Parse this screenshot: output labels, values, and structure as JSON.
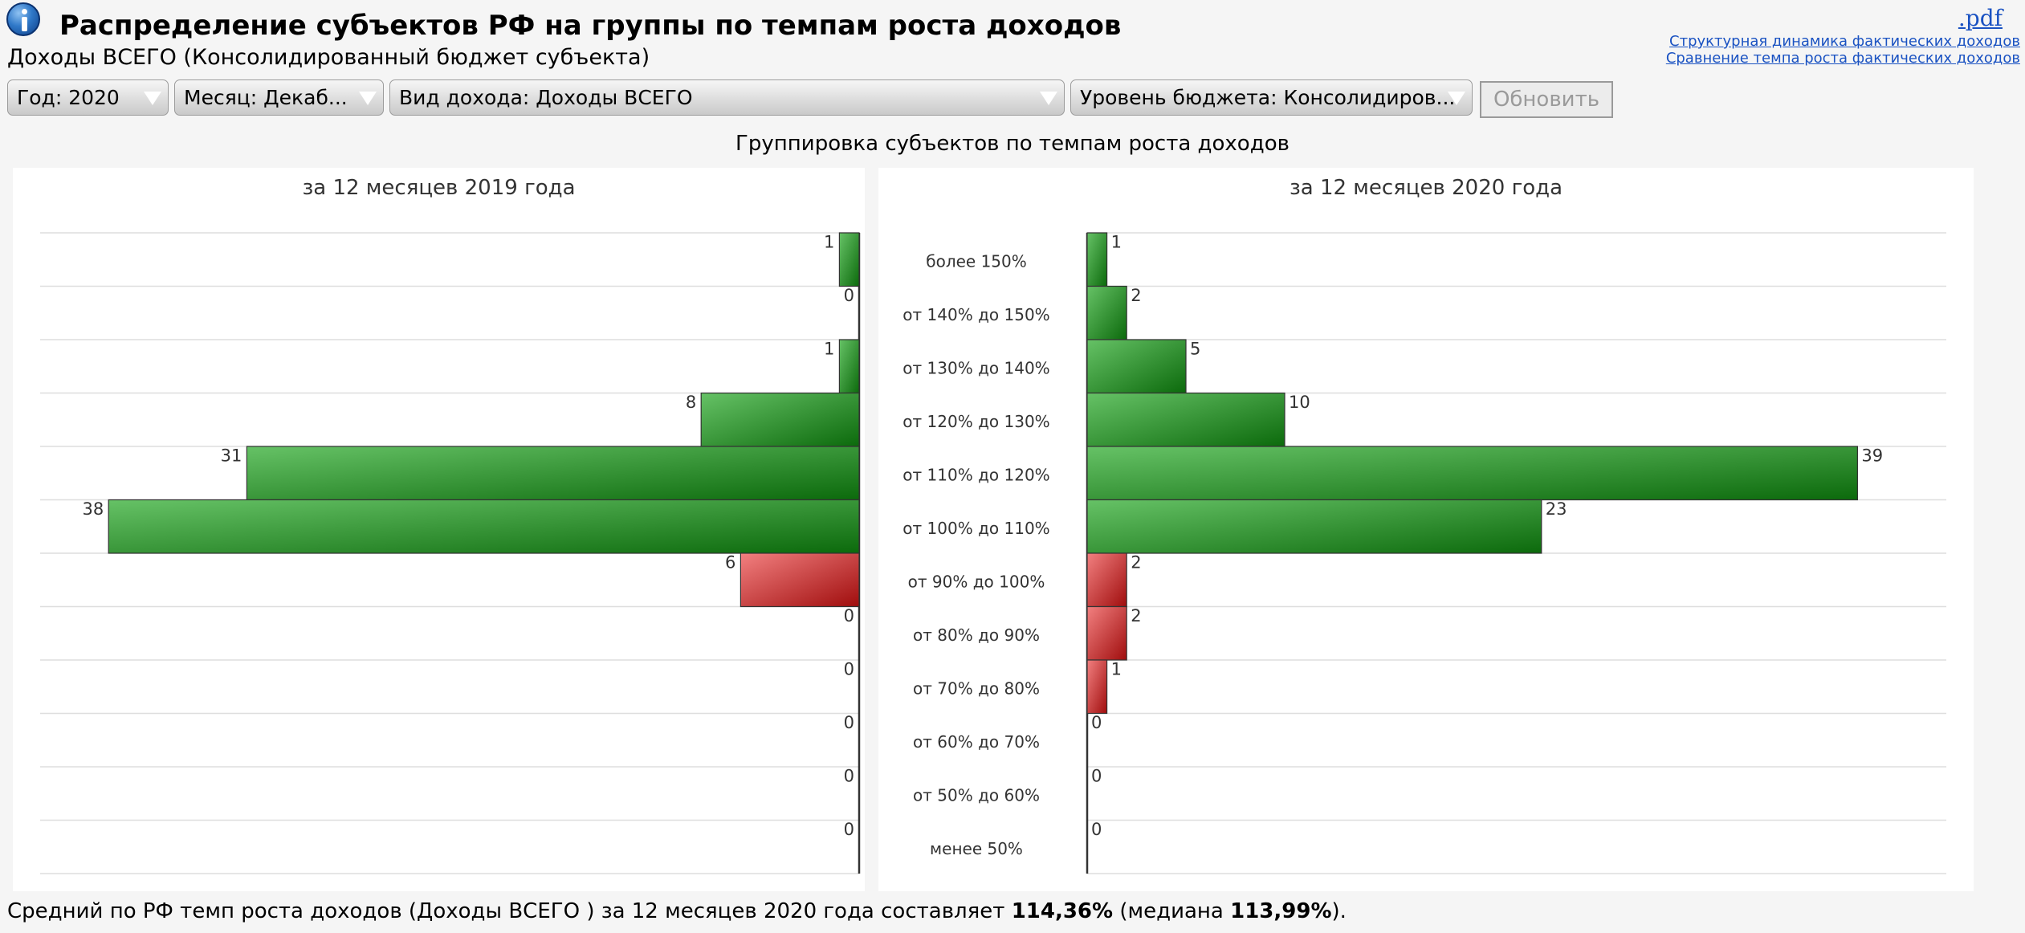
{
  "header": {
    "title": "Распределение субъектов РФ на группы по темпам роста доходов",
    "subtitle": "Доходы ВСЕГО (Консолидированный бюджет субъекта)",
    "pdf_link": ".pdf",
    "links": [
      "Структурная динамика фактических доходов",
      "Сравнение темпа роста фактических доходов"
    ]
  },
  "filters": {
    "year": "Год: 2020",
    "month": "Месяц: Декаб...",
    "income_type": "Вид дохода: Доходы ВСЕГО",
    "budget_level": "Уровень бюджета: Консолидиров...",
    "refresh_label": "Обновить"
  },
  "chart_data": {
    "type": "bar",
    "orientation": "horizontal",
    "title": "Группировка субъектов по темпам роста доходов",
    "categories": [
      "более 150%",
      "от 140% до 150%",
      "от 130% до 140%",
      "от 120% до 130%",
      "от 110% до 120%",
      "от 100% до 110%",
      "от 90% до 100%",
      "от 80% до 90%",
      "от 70% до 80%",
      "от 60% до 70%",
      "от 50% до 60%",
      "менее 50%"
    ],
    "series": [
      {
        "name": "за 12 месяцев 2019 года",
        "values": [
          1,
          0,
          1,
          8,
          31,
          38,
          6,
          0,
          0,
          0,
          0,
          0
        ]
      },
      {
        "name": "за 12 месяцев 2020 года",
        "values": [
          1,
          2,
          5,
          10,
          39,
          23,
          2,
          2,
          1,
          0,
          0,
          0
        ]
      }
    ],
    "colors": {
      "growth": "#2a8a2a",
      "decline": "#c83232"
    },
    "decline_from_index": 6,
    "xlim": [
      0,
      40
    ],
    "grid": true,
    "data_labels": true
  },
  "footer": {
    "text_before": "Средний по РФ темп роста доходов (Доходы ВСЕГО ) за 12 месяцев 2020 года составляет ",
    "avg": "114,36%",
    "text_middle": " (медиана ",
    "median": "113,99%",
    "text_after": ")."
  }
}
